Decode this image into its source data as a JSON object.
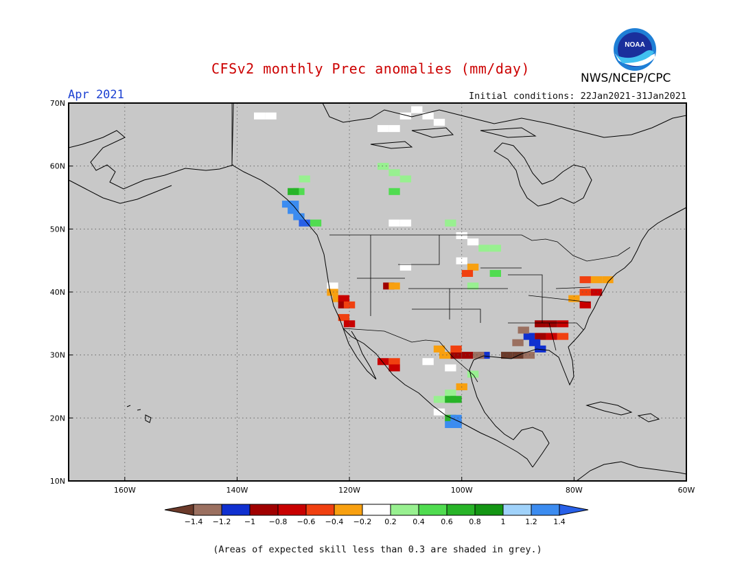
{
  "title": "CFSv2 monthly Prec anomalies (mm/day)",
  "valid_month": "Apr 2021",
  "initial_conditions": "Initial conditions: 22Jan2021-31Jan2021",
  "agency": "NWS/NCEP/CPC",
  "logo_text": "NOAA",
  "footnote": "(Areas of expected skill less than 0.3 are shaded in grey.)",
  "map": {
    "lon_range": [
      -170,
      -60
    ],
    "lat_range": [
      10,
      70
    ],
    "background_color": "#c8c8c8",
    "lon_ticks": [
      {
        "value": -160,
        "label": "160W"
      },
      {
        "value": -140,
        "label": "140W"
      },
      {
        "value": -120,
        "label": "120W"
      },
      {
        "value": -100,
        "label": "100W"
      },
      {
        "value": -80,
        "label": "80W"
      },
      {
        "value": -60,
        "label": "60W"
      }
    ],
    "lat_ticks": [
      {
        "value": 70,
        "label": "70N"
      },
      {
        "value": 60,
        "label": "60N"
      },
      {
        "value": 50,
        "label": "50N"
      },
      {
        "value": 40,
        "label": "40N"
      },
      {
        "value": 30,
        "label": "30N"
      },
      {
        "value": 20,
        "label": "20N"
      },
      {
        "value": 10,
        "label": "10N"
      }
    ],
    "gridlines": true
  },
  "colorbar": {
    "labels": [
      "-1.4",
      "-1.2",
      "-1",
      "-0.8",
      "-0.6",
      "-0.4",
      "-0.2",
      "0.2",
      "0.4",
      "0.6",
      "0.8",
      "1",
      "1.2",
      "1.4"
    ],
    "colors": [
      "#6b3a2a",
      "#9b7060",
      "#1030d0",
      "#a00000",
      "#c80000",
      "#f04010",
      "#f8a010",
      "#ffffff",
      "#98f090",
      "#50dc50",
      "#28b428",
      "#149614",
      "#a0d2fa",
      "#3c8cf0",
      "#2860e8"
    ]
  },
  "chart_data": {
    "type": "heatmap",
    "title": "CFSv2 monthly Prec anomalies (mm/day)",
    "variable": "precipitation anomaly (mm/day)",
    "valid": "Apr 2021",
    "xlim": [
      -170,
      -60
    ],
    "ylim": [
      10,
      70
    ],
    "cells": [
      {
        "lon": -136,
        "lat": 68,
        "v": 0.0
      },
      {
        "lon": -134,
        "lat": 68,
        "v": 0.0
      },
      {
        "lon": -110,
        "lat": 68,
        "v": 0.0
      },
      {
        "lon": -108,
        "lat": 69,
        "v": 0.0
      },
      {
        "lon": -106,
        "lat": 68,
        "v": 0.0
      },
      {
        "lon": -104,
        "lat": 67,
        "v": 0.0
      },
      {
        "lon": -114,
        "lat": 66,
        "v": 0.0
      },
      {
        "lon": -112,
        "lat": 66,
        "v": 0.0
      },
      {
        "lon": -114,
        "lat": 60,
        "v": 0.3
      },
      {
        "lon": -112,
        "lat": 59,
        "v": 0.3
      },
      {
        "lon": -110,
        "lat": 58,
        "v": 0.3
      },
      {
        "lon": -112,
        "lat": 56,
        "v": 0.5
      },
      {
        "lon": -112,
        "lat": 51,
        "v": 0.0
      },
      {
        "lon": -110,
        "lat": 51,
        "v": 0.0
      },
      {
        "lon": -126,
        "lat": 51,
        "v": 0.5
      },
      {
        "lon": -128,
        "lat": 58,
        "v": 0.3
      },
      {
        "lon": -129,
        "lat": 56,
        "v": 0.5
      },
      {
        "lon": -130,
        "lat": 56,
        "v": 0.7
      },
      {
        "lon": -131,
        "lat": 54,
        "v": 1.3
      },
      {
        "lon": -130,
        "lat": 54,
        "v": 1.3
      },
      {
        "lon": -130,
        "lat": 53,
        "v": 1.2
      },
      {
        "lon": -129,
        "lat": 52,
        "v": 1.3
      },
      {
        "lon": -128,
        "lat": 51,
        "v": 1.4
      },
      {
        "lon": -102,
        "lat": 51,
        "v": 0.3
      },
      {
        "lon": -100,
        "lat": 49,
        "v": 0.0
      },
      {
        "lon": -98,
        "lat": 48,
        "v": 0.0
      },
      {
        "lon": -96,
        "lat": 47,
        "v": 0.3
      },
      {
        "lon": -94,
        "lat": 47,
        "v": 0.3
      },
      {
        "lon": -100,
        "lat": 45,
        "v": 0.0
      },
      {
        "lon": -98,
        "lat": 44,
        "v": -0.4
      },
      {
        "lon": -99,
        "lat": 43,
        "v": -0.5
      },
      {
        "lon": -94,
        "lat": 43,
        "v": 0.5
      },
      {
        "lon": -98,
        "lat": 41,
        "v": 0.3
      },
      {
        "lon": -110,
        "lat": 44,
        "v": 0.0
      },
      {
        "lon": -123,
        "lat": 41,
        "v": 0.0
      },
      {
        "lon": -123,
        "lat": 40,
        "v": -0.3
      },
      {
        "lon": -122,
        "lat": 39,
        "v": -0.3
      },
      {
        "lon": -121,
        "lat": 39,
        "v": -0.7
      },
      {
        "lon": -121,
        "lat": 38,
        "v": -0.9
      },
      {
        "lon": -120,
        "lat": 38,
        "v": -0.5
      },
      {
        "lon": -121,
        "lat": 36,
        "v": -0.5
      },
      {
        "lon": -120,
        "lat": 35,
        "v": -0.8
      },
      {
        "lon": -113,
        "lat": 41,
        "v": -0.9
      },
      {
        "lon": -112,
        "lat": 41,
        "v": -0.3
      },
      {
        "lon": -78,
        "lat": 42,
        "v": -0.5
      },
      {
        "lon": -76,
        "lat": 42,
        "v": -0.4
      },
      {
        "lon": -74,
        "lat": 42,
        "v": -0.3
      },
      {
        "lon": -78,
        "lat": 40,
        "v": -0.6
      },
      {
        "lon": -76,
        "lat": 40,
        "v": -0.7
      },
      {
        "lon": -80,
        "lat": 39,
        "v": -0.4
      },
      {
        "lon": -78,
        "lat": 38,
        "v": -0.8
      },
      {
        "lon": -86,
        "lat": 35,
        "v": -0.9
      },
      {
        "lon": -84,
        "lat": 35,
        "v": -0.9
      },
      {
        "lon": -82,
        "lat": 35,
        "v": -0.8
      },
      {
        "lon": -86,
        "lat": 33,
        "v": -0.9
      },
      {
        "lon": -84,
        "lat": 33,
        "v": -0.7
      },
      {
        "lon": -82,
        "lat": 33,
        "v": -0.6
      },
      {
        "lon": -88,
        "lat": 33,
        "v": -1.2
      },
      {
        "lon": -87,
        "lat": 32,
        "v": -1.2
      },
      {
        "lon": -86,
        "lat": 31,
        "v": -1.1
      },
      {
        "lon": -89,
        "lat": 34,
        "v": -1.3
      },
      {
        "lon": -90,
        "lat": 32,
        "v": -1.3
      },
      {
        "lon": -92,
        "lat": 30,
        "v": -1.5
      },
      {
        "lon": -90,
        "lat": 30,
        "v": -1.5
      },
      {
        "lon": -88,
        "lat": 30,
        "v": -1.4
      },
      {
        "lon": -96,
        "lat": 30,
        "v": -1.2
      },
      {
        "lon": -97,
        "lat": 30,
        "v": -1.3
      },
      {
        "lon": -99,
        "lat": 30,
        "v": -0.9
      },
      {
        "lon": -101,
        "lat": 30,
        "v": -0.9
      },
      {
        "lon": -103,
        "lat": 30,
        "v": -0.3
      },
      {
        "lon": -101,
        "lat": 31,
        "v": -0.5
      },
      {
        "lon": -104,
        "lat": 31,
        "v": -0.3
      },
      {
        "lon": -106,
        "lat": 29,
        "v": 0.0
      },
      {
        "lon": -102,
        "lat": 28,
        "v": 0.0
      },
      {
        "lon": -114,
        "lat": 29,
        "v": -0.7
      },
      {
        "lon": -112,
        "lat": 29,
        "v": -0.6
      },
      {
        "lon": -112,
        "lat": 28,
        "v": -0.8
      },
      {
        "lon": -98,
        "lat": 27,
        "v": 0.3
      },
      {
        "lon": -100,
        "lat": 25,
        "v": -0.3
      },
      {
        "lon": -102,
        "lat": 24,
        "v": 0.3
      },
      {
        "lon": -104,
        "lat": 23,
        "v": 0.3
      },
      {
        "lon": -102,
        "lat": 23,
        "v": 0.7
      },
      {
        "lon": -101,
        "lat": 23,
        "v": 0.7
      },
      {
        "lon": -104,
        "lat": 21,
        "v": 0.0
      },
      {
        "lon": -102,
        "lat": 20,
        "v": 0.7
      },
      {
        "lon": -101,
        "lat": 20,
        "v": 1.3
      },
      {
        "lon": -101,
        "lat": 19,
        "v": 1.3
      },
      {
        "lon": -102,
        "lat": 19,
        "v": 1.3
      }
    ]
  }
}
